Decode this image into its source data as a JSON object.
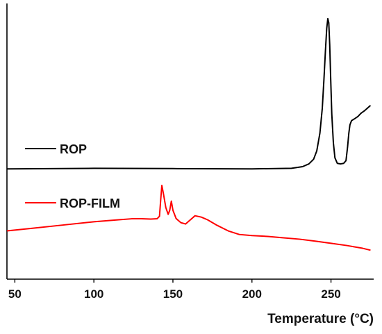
{
  "chart_data": {
    "type": "line",
    "xlabel": "Temperature (°C)",
    "ylabel": "",
    "xlim": [
      45,
      277
    ],
    "ylim": [
      0,
      100
    ],
    "x_ticks": [
      50,
      100,
      150,
      200,
      250
    ],
    "grid": false,
    "legend_placement": "inline",
    "series": [
      {
        "name": "ROP",
        "color": "#000000",
        "points": [
          [
            45,
            40.0
          ],
          [
            100,
            40.2
          ],
          [
            150,
            40.1
          ],
          [
            200,
            40.0
          ],
          [
            225,
            40.2
          ],
          [
            232,
            40.8
          ],
          [
            236,
            41.8
          ],
          [
            239,
            43.5
          ],
          [
            241,
            46.5
          ],
          [
            243,
            53.0
          ],
          [
            244.5,
            62.0
          ],
          [
            245.5,
            72.0
          ],
          [
            246.5,
            83.0
          ],
          [
            247.3,
            91.0
          ],
          [
            248,
            94.5
          ],
          [
            248.6,
            93.0
          ],
          [
            249.2,
            85.0
          ],
          [
            249.8,
            73.0
          ],
          [
            250.5,
            60.0
          ],
          [
            251.5,
            49.5
          ],
          [
            252.5,
            44.0
          ],
          [
            254,
            42.0
          ],
          [
            256,
            41.8
          ],
          [
            258,
            42.0
          ],
          [
            259.5,
            43.0
          ],
          [
            260.5,
            48.0
          ],
          [
            261.3,
            53.0
          ],
          [
            262,
            56.0
          ],
          [
            263,
            57.5
          ],
          [
            265,
            58.2
          ],
          [
            267,
            59.0
          ],
          [
            269,
            60.2
          ],
          [
            271,
            61.0
          ],
          [
            273,
            62.0
          ],
          [
            275,
            63.0
          ]
        ]
      },
      {
        "name": "ROP-FILM",
        "color": "#ff0000",
        "points": [
          [
            45,
            17.5
          ],
          [
            60,
            18.4
          ],
          [
            80,
            19.6
          ],
          [
            100,
            20.8
          ],
          [
            115,
            21.5
          ],
          [
            124,
            21.9
          ],
          [
            130,
            21.9
          ],
          [
            136,
            21.8
          ],
          [
            140,
            21.9
          ],
          [
            141.5,
            22.8
          ],
          [
            142.3,
            29.0
          ],
          [
            143,
            34.0
          ],
          [
            144,
            31.0
          ],
          [
            145.5,
            26.0
          ],
          [
            147,
            23.5
          ],
          [
            148,
            25.0
          ],
          [
            149,
            28.3
          ],
          [
            150,
            25.0
          ],
          [
            152,
            22.0
          ],
          [
            155,
            20.5
          ],
          [
            158,
            20.0
          ],
          [
            161,
            21.5
          ],
          [
            164,
            23.0
          ],
          [
            168,
            22.5
          ],
          [
            172,
            21.5
          ],
          [
            178,
            19.5
          ],
          [
            185,
            17.5
          ],
          [
            192,
            16.2
          ],
          [
            200,
            15.8
          ],
          [
            210,
            15.5
          ],
          [
            220,
            15.0
          ],
          [
            230,
            14.5
          ],
          [
            240,
            13.8
          ],
          [
            250,
            13.0
          ],
          [
            260,
            12.2
          ],
          [
            270,
            11.2
          ],
          [
            275,
            10.5
          ]
        ]
      }
    ],
    "legend": [
      {
        "label": "ROP",
        "color": "#000000"
      },
      {
        "label": "ROP-FILM",
        "color": "#ff0000"
      }
    ]
  }
}
